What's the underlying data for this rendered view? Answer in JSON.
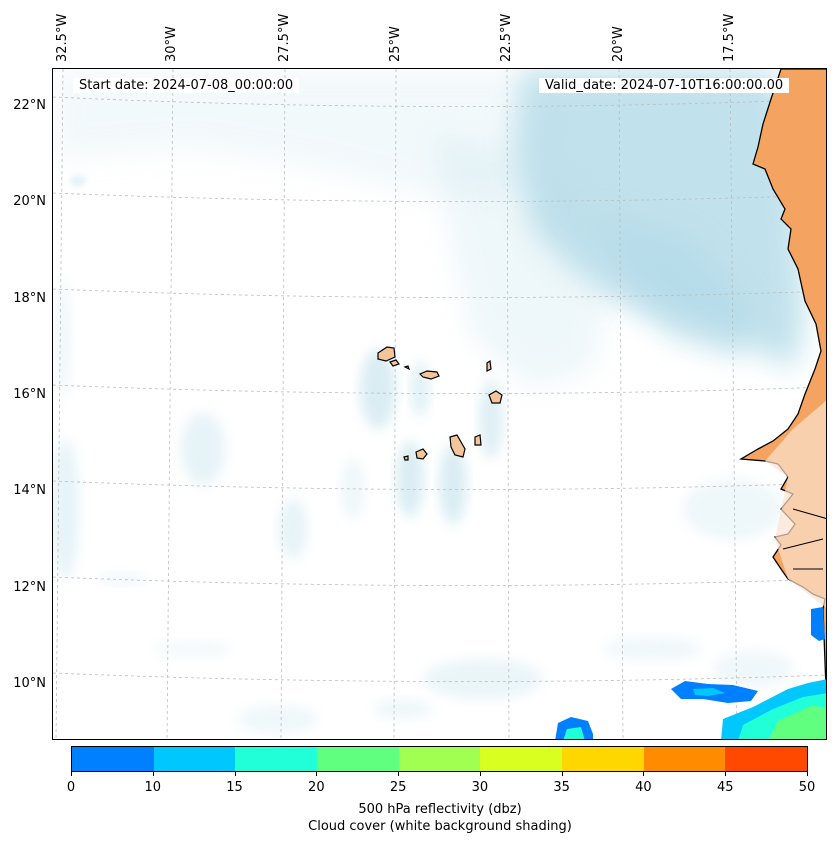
{
  "stamps": {
    "start": "Start date: 2024-07-08_00:00:00",
    "valid": "Valid_date: 2024-07-10T16:00:00.00"
  },
  "map": {
    "lon_labels": [
      "32.5°W",
      "30°W",
      "27.5°W",
      "25°W",
      "22.5°W",
      "20°W",
      "17.5°W"
    ],
    "lat_labels": [
      "22°N",
      "20°N",
      "18°N",
      "16°N",
      "14°N",
      "12°N",
      "10°N"
    ],
    "land_color": "#f4a460",
    "coast_color": "#000000",
    "cloud_color": "#add8e6",
    "gridline_color": "#bdbdbd"
  },
  "colorbar": {
    "ticks": [
      "0",
      "10",
      "15",
      "20",
      "25",
      "30",
      "35",
      "40",
      "45",
      "50"
    ],
    "colors": [
      "#0080ff",
      "#00c8ff",
      "#20ffd8",
      "#60ff80",
      "#a0ff50",
      "#d8ff20",
      "#ffd700",
      "#ff8c00",
      "#ff4800"
    ],
    "label": "500 hPa reflectivity (dbz)",
    "sublabel": "Cloud cover (white background shading)"
  }
}
